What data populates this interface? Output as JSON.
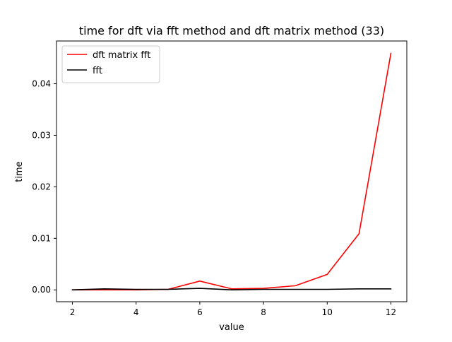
{
  "chart_data": {
    "type": "line",
    "title": "time for dft via fft method and dft matrix method (33)",
    "xlabel": "value",
    "ylabel": "time",
    "xlim": [
      1.5,
      12.5
    ],
    "ylim": [
      -0.0023,
      0.0483
    ],
    "xticks": [
      2,
      4,
      6,
      8,
      10,
      12
    ],
    "xtick_labels": [
      "2",
      "4",
      "6",
      "8",
      "10",
      "12"
    ],
    "yticks": [
      0.0,
      0.01,
      0.02,
      0.03,
      0.04
    ],
    "ytick_labels": [
      "0.00",
      "0.01",
      "0.02",
      "0.03",
      "0.04"
    ],
    "grid": false,
    "legend_position": "upper-left",
    "x": [
      2,
      3,
      4,
      5,
      6,
      7,
      8,
      9,
      10,
      11,
      12
    ],
    "series": [
      {
        "name": "dft matrix fft",
        "color": "#ff0000",
        "values": [
          0.0,
          0.0,
          0.0,
          0.0001,
          0.0017,
          0.0002,
          0.0003,
          0.0008,
          0.003,
          0.0109,
          0.0459
        ]
      },
      {
        "name": "fft",
        "color": "#000000",
        "values": [
          0.0,
          0.0002,
          0.0001,
          0.0001,
          0.0003,
          0.0,
          0.0001,
          0.0001,
          0.0001,
          0.0002,
          0.0002
        ]
      }
    ]
  }
}
